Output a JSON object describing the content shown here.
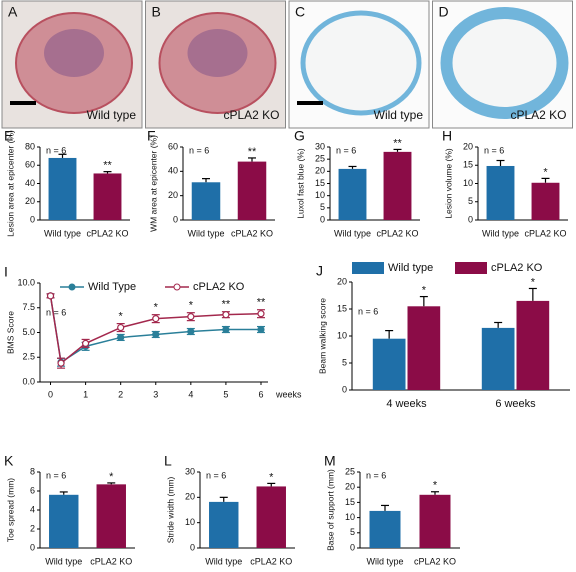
{
  "images": [
    {
      "letter": "A",
      "label": "Wild type"
    },
    {
      "letter": "B",
      "label": "cPLA2 KO"
    },
    {
      "letter": "C",
      "label": "Wild type"
    },
    {
      "letter": "D",
      "label": "cPLA2 KO"
    }
  ],
  "chart_data": [
    {
      "type": "bar",
      "panel": "E",
      "ylabel": "Lesion area at epicenter (%)",
      "n_label": "n = 6",
      "categories": [
        "Wild type",
        "cPLA2 KO"
      ],
      "values": [
        68,
        51
      ],
      "errors": [
        4,
        2
      ],
      "sig_labels": [
        null,
        "**"
      ],
      "colors": [
        "#1f6fa8",
        "#8b0c47"
      ],
      "ylim": [
        0,
        80
      ],
      "yticks": [
        0,
        20,
        40,
        60,
        80
      ]
    },
    {
      "type": "bar",
      "panel": "F",
      "ylabel": "WM area at epicenter (%)",
      "n_label": "n = 6",
      "categories": [
        "Wild type",
        "cPLA2 KO"
      ],
      "values": [
        31,
        48
      ],
      "errors": [
        3,
        3
      ],
      "sig_labels": [
        null,
        "**"
      ],
      "colors": [
        "#1f6fa8",
        "#8b0c47"
      ],
      "ylim": [
        0,
        60
      ],
      "yticks": [
        0,
        20,
        40,
        60
      ]
    },
    {
      "type": "bar",
      "panel": "G",
      "ylabel": "Luxol fast blue (%)",
      "n_label": "n = 6",
      "categories": [
        "Wild type",
        "cPLA2 KO"
      ],
      "values": [
        21,
        28
      ],
      "errors": [
        1,
        1
      ],
      "sig_labels": [
        null,
        "**"
      ],
      "colors": [
        "#1f6fa8",
        "#8b0c47"
      ],
      "ylim": [
        0,
        30
      ],
      "yticks": [
        0,
        5,
        10,
        15,
        20,
        25,
        30
      ]
    },
    {
      "type": "bar",
      "panel": "H",
      "ylabel": "Lesion volume (%)",
      "n_label": "n = 6",
      "categories": [
        "Wild type",
        "cPLA2 KO"
      ],
      "values": [
        14.8,
        10.2
      ],
      "errors": [
        1.5,
        1.2
      ],
      "sig_labels": [
        null,
        "*"
      ],
      "colors": [
        "#1f6fa8",
        "#8b0c47"
      ],
      "ylim": [
        0,
        20
      ],
      "yticks": [
        0,
        5,
        10,
        15,
        20
      ]
    },
    {
      "type": "line",
      "panel": "I",
      "ylabel": "BMS Score",
      "xlabel": "weeks",
      "n_label": "n = 6",
      "x": [
        0,
        0.3,
        1,
        2,
        3,
        4,
        5,
        6
      ],
      "xlim": [
        -0.3,
        6.2
      ],
      "xticks": [
        0,
        1,
        2,
        3,
        4,
        5,
        6
      ],
      "ylim": [
        0,
        10
      ],
      "yticks": [
        {
          "value": 0,
          "label": "0.0"
        },
        {
          "value": 2.5,
          "label": "2.5"
        },
        {
          "value": 5,
          "label": "5.0"
        },
        {
          "value": 7.5,
          "label": "7.5"
        },
        {
          "value": 10,
          "label": "10.0"
        }
      ],
      "series": [
        {
          "name": "Wild Type",
          "color": "#2a7f99",
          "hollow": false,
          "values": [
            8.7,
            2.0,
            3.6,
            4.5,
            4.8,
            5.1,
            5.3,
            5.3
          ],
          "errors": [
            0.2,
            0.4,
            0.4,
            0.3,
            0.3,
            0.3,
            0.3,
            0.3
          ],
          "sig_labels": [
            null,
            null,
            null,
            null,
            null,
            null,
            null,
            null
          ]
        },
        {
          "name": "cPLA2 KO",
          "color": "#a3284d",
          "hollow": true,
          "values": [
            8.7,
            1.9,
            3.9,
            5.5,
            6.4,
            6.6,
            6.8,
            6.9
          ],
          "errors": [
            0.2,
            0.5,
            0.4,
            0.4,
            0.4,
            0.4,
            0.3,
            0.4
          ],
          "sig_labels": [
            null,
            null,
            null,
            "*",
            "*",
            "*",
            "**",
            "**"
          ]
        }
      ]
    },
    {
      "type": "grouped_bar",
      "panel": "J",
      "ylabel": "Beam walking score",
      "n_label": "n = 6",
      "categories": [
        "4 weeks",
        "6 weeks"
      ],
      "ylim": [
        0,
        20
      ],
      "yticks": [
        0,
        5,
        10,
        15,
        20
      ],
      "series": [
        {
          "name": "Wild type",
          "color": "#1f6fa8",
          "values": [
            9.5,
            11.5
          ],
          "errors": [
            1.5,
            1.0
          ],
          "sig_labels": [
            null,
            null
          ]
        },
        {
          "name": "cPLA2 KO",
          "color": "#8b0c47",
          "values": [
            15.5,
            16.5
          ],
          "errors": [
            1.8,
            2.3
          ],
          "sig_labels": [
            "*",
            "*"
          ]
        }
      ]
    },
    {
      "type": "bar",
      "panel": "K",
      "ylabel": "Toe spread (mm)",
      "n_label": "n = 6",
      "categories": [
        "Wild type",
        "cPLA2 KO"
      ],
      "values": [
        5.6,
        6.7
      ],
      "errors": [
        0.3,
        0.15
      ],
      "sig_labels": [
        null,
        "*"
      ],
      "colors": [
        "#1f6fa8",
        "#8b0c47"
      ],
      "ylim": [
        0,
        8
      ],
      "yticks": [
        0,
        2,
        4,
        6,
        8
      ]
    },
    {
      "type": "bar",
      "panel": "L",
      "ylabel": "Stride width (mm)",
      "n_label": "n = 6",
      "categories": [
        "Wild type",
        "cPLA2 KO"
      ],
      "values": [
        18.2,
        24.3
      ],
      "errors": [
        1.8,
        1.2
      ],
      "sig_labels": [
        null,
        "*"
      ],
      "colors": [
        "#1f6fa8",
        "#8b0c47"
      ],
      "ylim": [
        0,
        30
      ],
      "yticks": [
        0,
        10,
        20,
        30
      ]
    },
    {
      "type": "bar",
      "panel": "M",
      "ylabel": "Base of support (mm)",
      "n_label": "n = 6",
      "categories": [
        "Wild type",
        "cPLA2 KO"
      ],
      "values": [
        12.2,
        17.5
      ],
      "errors": [
        1.8,
        1.0
      ],
      "sig_labels": [
        null,
        "*"
      ],
      "colors": [
        "#1f6fa8",
        "#8b0c47"
      ],
      "ylim": [
        0,
        25
      ],
      "yticks": [
        0,
        5,
        10,
        15,
        20,
        25
      ]
    }
  ]
}
